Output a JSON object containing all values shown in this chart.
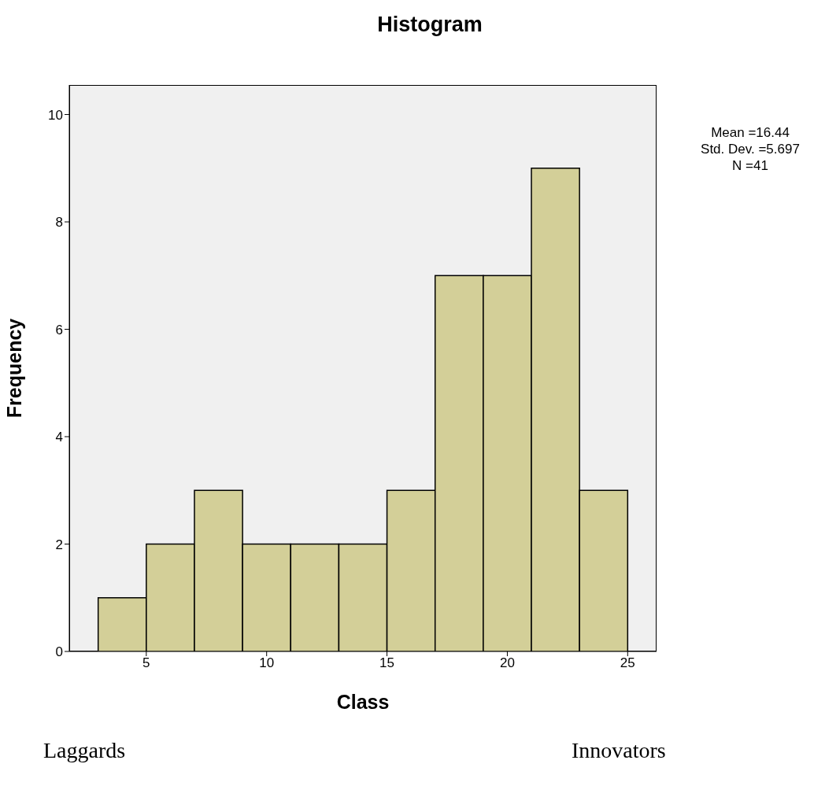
{
  "chart_data": {
    "type": "histogram",
    "title": "Histogram",
    "xlabel": "Class",
    "ylabel": "Frequency",
    "bins": [
      3,
      5,
      7,
      9,
      11,
      13,
      15,
      17,
      19,
      21,
      23,
      25
    ],
    "values": [
      1,
      2,
      3,
      2,
      2,
      2,
      3,
      7,
      7,
      9,
      3
    ],
    "color": "#d3cf98",
    "xlim": [
      1.8,
      26.2
    ],
    "xticks": [
      5,
      10,
      15,
      20,
      25
    ],
    "ylim": [
      0,
      10.55
    ],
    "yticks": [
      0,
      2,
      4,
      6,
      8,
      10
    ],
    "annotations": [
      "Mean =16.44",
      "Std. Dev. =5.697",
      "N =41",
      "Laggards",
      "Innovators"
    ]
  }
}
